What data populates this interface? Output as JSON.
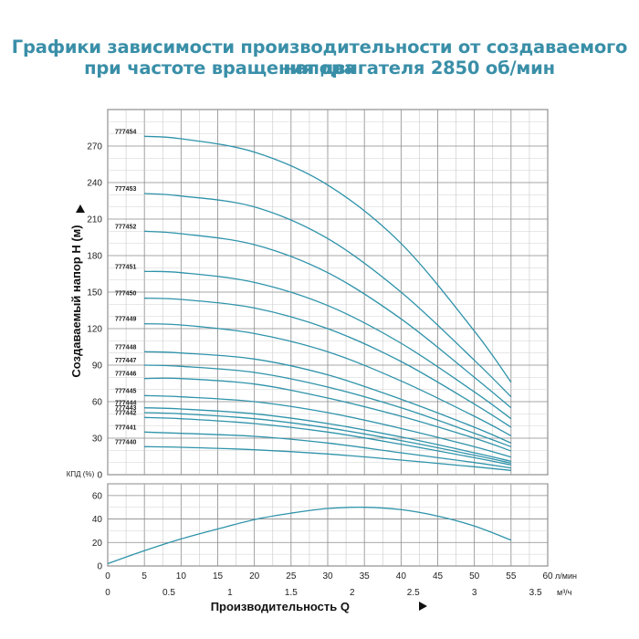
{
  "title_line1": "Графики зависимости производительности от создаваемого напора",
  "title_line2": "при частоте вращения двигателя 2850 об/мин",
  "chart_data": [
    {
      "type": "line",
      "ylabel": "Создаваемый напор H (м)",
      "ylim": [
        0,
        300
      ],
      "yticks": [
        0,
        30,
        60,
        90,
        120,
        150,
        180,
        210,
        240,
        270
      ],
      "xlim": [
        0,
        60
      ],
      "grid": true,
      "line_color": "#2f93aa",
      "series": [
        {
          "name": "777440",
          "points": [
            [
              5,
              23
            ],
            [
              10,
              22.5
            ],
            [
              20,
              20.5
            ],
            [
              30,
              17
            ],
            [
              40,
              12
            ],
            [
              50,
              6.5
            ],
            [
              55,
              3.5
            ]
          ]
        },
        {
          "name": "777441",
          "points": [
            [
              5,
              35
            ],
            [
              10,
              34
            ],
            [
              20,
              31.5
            ],
            [
              30,
              26
            ],
            [
              40,
              18
            ],
            [
              50,
              10
            ],
            [
              55,
              5.5
            ]
          ]
        },
        {
          "name": "777442",
          "points": [
            [
              5,
              47
            ],
            [
              10,
              46
            ],
            [
              20,
              42
            ],
            [
              30,
              35
            ],
            [
              40,
              25
            ],
            [
              50,
              14
            ],
            [
              55,
              8
            ]
          ]
        },
        {
          "name": "777443",
          "points": [
            [
              5,
              51
            ],
            [
              10,
              50
            ],
            [
              20,
              46
            ],
            [
              30,
              38.5
            ],
            [
              40,
              28
            ],
            [
              50,
              16
            ],
            [
              55,
              9.5
            ]
          ]
        },
        {
          "name": "777444",
          "points": [
            [
              5,
              55
            ],
            [
              10,
              54
            ],
            [
              20,
              50
            ],
            [
              30,
              42
            ],
            [
              40,
              31
            ],
            [
              50,
              18
            ],
            [
              55,
              11
            ]
          ]
        },
        {
          "name": "777445",
          "points": [
            [
              5,
              65
            ],
            [
              10,
              64
            ],
            [
              20,
              60
            ],
            [
              30,
              51
            ],
            [
              40,
              38
            ],
            [
              50,
              23
            ],
            [
              55,
              14.5
            ]
          ]
        },
        {
          "name": "777446",
          "points": [
            [
              5,
              79
            ],
            [
              10,
              79
            ],
            [
              20,
              74.5
            ],
            [
              30,
              63
            ],
            [
              40,
              48
            ],
            [
              50,
              30
            ],
            [
              55,
              19.5
            ]
          ]
        },
        {
          "name": "777447",
          "points": [
            [
              5,
              90
            ],
            [
              10,
              89
            ],
            [
              20,
              84
            ],
            [
              30,
              72
            ],
            [
              40,
              55
            ],
            [
              50,
              34
            ],
            [
              55,
              23
            ]
          ]
        },
        {
          "name": "777448",
          "points": [
            [
              5,
              101
            ],
            [
              10,
              100
            ],
            [
              20,
              95
            ],
            [
              30,
              82
            ],
            [
              40,
              62
            ],
            [
              50,
              39
            ],
            [
              55,
              26
            ]
          ]
        },
        {
          "name": "777449",
          "points": [
            [
              5,
              124
            ],
            [
              10,
              123
            ],
            [
              20,
              116
            ],
            [
              30,
              101
            ],
            [
              40,
              77
            ],
            [
              50,
              48
            ],
            [
              55,
              32
            ]
          ]
        },
        {
          "name": "777450",
          "points": [
            [
              5,
              145
            ],
            [
              10,
              144
            ],
            [
              20,
              137
            ],
            [
              30,
              120
            ],
            [
              40,
              93
            ],
            [
              50,
              58
            ],
            [
              55,
              39
            ]
          ]
        },
        {
          "name": "777451",
          "points": [
            [
              5,
              167
            ],
            [
              10,
              166
            ],
            [
              20,
              158
            ],
            [
              30,
              139
            ],
            [
              40,
              108
            ],
            [
              50,
              68
            ],
            [
              55,
              46
            ]
          ]
        },
        {
          "name": "777452",
          "points": [
            [
              5,
              200
            ],
            [
              10,
              198
            ],
            [
              20,
              189
            ],
            [
              30,
              166
            ],
            [
              40,
              128
            ],
            [
              50,
              80
            ],
            [
              55,
              55
            ]
          ]
        },
        {
          "name": "777453",
          "points": [
            [
              5,
              231
            ],
            [
              10,
              229
            ],
            [
              20,
              220
            ],
            [
              30,
              194
            ],
            [
              40,
              150
            ],
            [
              50,
              94
            ],
            [
              55,
              64
            ]
          ]
        },
        {
          "name": "777454",
          "points": [
            [
              5,
              278
            ],
            [
              10,
              276
            ],
            [
              20,
              265
            ],
            [
              30,
              238
            ],
            [
              40,
              190
            ],
            [
              50,
              118
            ],
            [
              55,
              76
            ]
          ]
        }
      ]
    },
    {
      "type": "line",
      "ylabel": "КПД (%)",
      "ylim": [
        0,
        70
      ],
      "yticks": [
        0,
        20,
        40,
        60
      ],
      "xlim": [
        0,
        60
      ],
      "xticks_l": [
        0,
        5,
        10,
        15,
        20,
        25,
        30,
        35,
        40,
        45,
        50,
        55,
        60
      ],
      "xunit_l": "л/мин",
      "xticks_m3": [
        0,
        0.5,
        1,
        1.5,
        2,
        2.5,
        3,
        3.5
      ],
      "xunit_m3": "м³/ч",
      "xlabel": "Производительность Q",
      "grid": true,
      "line_color": "#2f93aa",
      "series": [
        {
          "points": [
            [
              0,
              2
            ],
            [
              5,
              13
            ],
            [
              10,
              23
            ],
            [
              15,
              31.5
            ],
            [
              20,
              39.5
            ],
            [
              25,
              45
            ],
            [
              30,
              49
            ],
            [
              35,
              50
            ],
            [
              40,
              48
            ],
            [
              45,
              42.5
            ],
            [
              50,
              34
            ],
            [
              55,
              22
            ]
          ]
        }
      ]
    }
  ]
}
